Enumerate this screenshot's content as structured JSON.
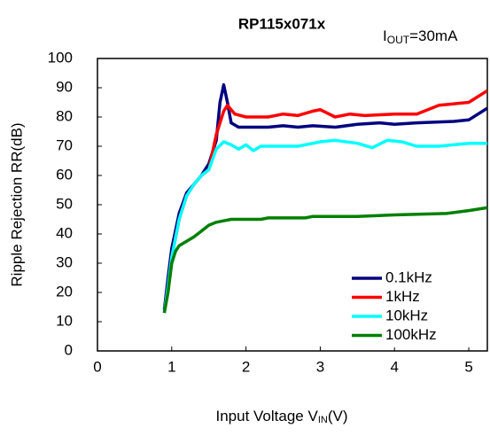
{
  "chart_data": {
    "type": "line",
    "title": "RP115x071x",
    "annotation": [
      "I",
      "OUT",
      "=30mA"
    ],
    "x_label": [
      "Input Voltage V",
      "IN",
      "(V)"
    ],
    "y_label": "Ripple Rejection RR(dB)",
    "xlim": [
      0,
      5.25
    ],
    "ylim": [
      0,
      100
    ],
    "xticks": [
      0,
      1,
      2,
      3,
      4,
      5
    ],
    "yticks": [
      0,
      10,
      20,
      30,
      40,
      50,
      60,
      70,
      80,
      90,
      100
    ],
    "legend": "lower right",
    "series": [
      {
        "name": "0.1kHz",
        "color": "#000080",
        "x": [
          0.9,
          0.95,
          1.0,
          1.1,
          1.2,
          1.3,
          1.4,
          1.5,
          1.6,
          1.65,
          1.7,
          1.75,
          1.8,
          1.9,
          2.0,
          2.3,
          2.5,
          2.7,
          2.9,
          3.2,
          3.5,
          3.8,
          4.0,
          4.3,
          4.8,
          5.0,
          5.25
        ],
        "values": [
          14,
          25,
          35,
          47,
          54,
          57,
          60,
          64,
          72,
          85,
          91,
          85,
          78,
          76.5,
          76.5,
          76.5,
          77,
          76.5,
          77,
          76.5,
          77.5,
          78,
          77.5,
          78,
          78.5,
          79,
          83
        ]
      },
      {
        "name": "1kHz",
        "color": "#ff0000",
        "x": [
          0.9,
          0.95,
          1.0,
          1.1,
          1.2,
          1.3,
          1.4,
          1.5,
          1.6,
          1.7,
          1.75,
          1.85,
          2.0,
          2.3,
          2.5,
          2.7,
          2.9,
          3.0,
          3.2,
          3.4,
          3.6,
          4.0,
          4.3,
          4.6,
          4.8,
          5.0,
          5.25
        ],
        "values": [
          13,
          22,
          32,
          45,
          53,
          57,
          60,
          62,
          74,
          82,
          84,
          81,
          80,
          80,
          81,
          80.5,
          82,
          82.5,
          80,
          81,
          80.5,
          81,
          81,
          84,
          84.5,
          85,
          89
        ]
      },
      {
        "name": "10kHz",
        "color": "#00ffff",
        "x": [
          0.9,
          0.95,
          1.0,
          1.1,
          1.2,
          1.3,
          1.4,
          1.5,
          1.6,
          1.7,
          1.8,
          1.9,
          2.0,
          2.1,
          2.2,
          2.5,
          2.7,
          3.0,
          3.2,
          3.5,
          3.7,
          3.9,
          4.1,
          4.3,
          4.6,
          5.0,
          5.25
        ],
        "values": [
          13,
          22,
          32,
          45,
          53,
          57,
          60,
          62,
          69,
          71.5,
          70.5,
          69,
          70.5,
          68.5,
          70,
          70,
          70,
          71.5,
          72,
          71,
          69.5,
          72,
          71.5,
          70,
          70,
          71,
          71
        ]
      },
      {
        "name": "100kHz",
        "color": "#008000",
        "x": [
          0.9,
          0.95,
          1.0,
          1.05,
          1.1,
          1.3,
          1.4,
          1.5,
          1.6,
          1.8,
          2.2,
          2.3,
          2.8,
          2.9,
          3.5,
          4.0,
          4.7,
          5.0,
          5.25
        ],
        "values": [
          13,
          20,
          30,
          34,
          36,
          39,
          41,
          43,
          44,
          45,
          45,
          45.5,
          45.5,
          46,
          46,
          46.5,
          47,
          48,
          49
        ]
      }
    ]
  }
}
